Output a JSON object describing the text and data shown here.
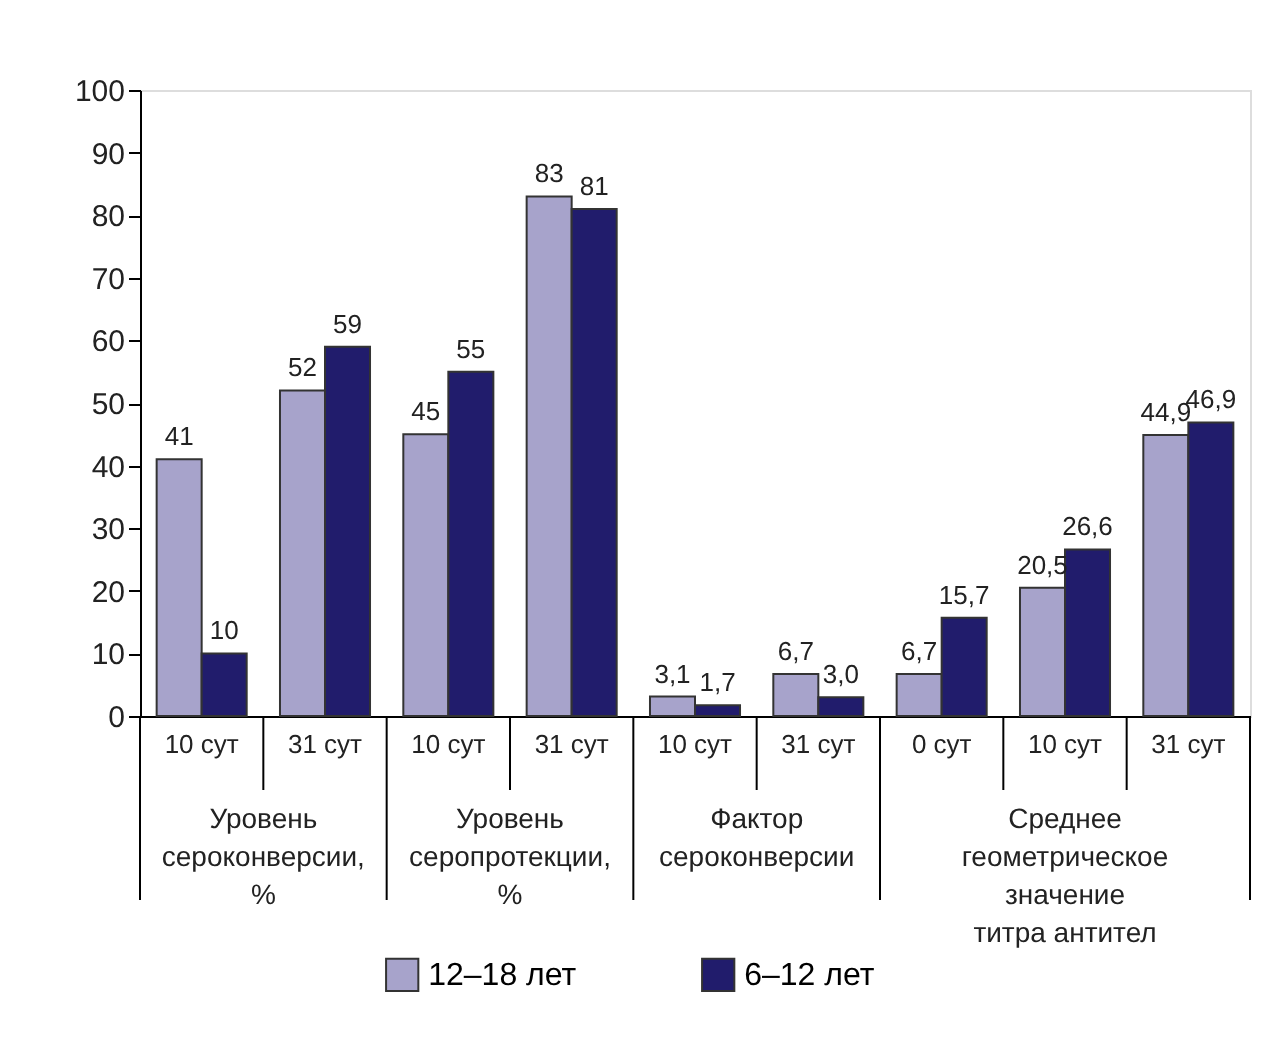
{
  "chart_data": {
    "type": "bar",
    "categories": [
      "10 сут",
      "31 сут",
      "10 сут",
      "31 сут",
      "10 сут",
      "31 сут",
      "0 сут",
      "10 сут",
      "31 сут"
    ],
    "series": [
      {
        "name": "12–18 лет",
        "color": "#a7a3cb",
        "values": [
          41,
          52,
          45,
          83,
          3.1,
          6.7,
          6.7,
          20.5,
          44.9
        ],
        "value_labels": [
          "41",
          "52",
          "45",
          "83",
          "3,1",
          "6,7",
          "6,7",
          "20,5",
          "44,9"
        ]
      },
      {
        "name": "6–12 лет",
        "color": "#211c6c",
        "values": [
          10,
          59,
          55,
          81,
          1.7,
          3.0,
          15.7,
          26.6,
          46.9
        ],
        "value_labels": [
          "10",
          "59",
          "55",
          "81",
          "1,7",
          "3,0",
          "15,7",
          "26,6",
          "46,9"
        ]
      }
    ],
    "annotations": [
      "Уровень\nсероконверсии,\n%",
      "Уровень\nсеропротекции,\n%",
      "Фактор\nсероконверсии",
      "Среднее\nгеометрическое\nзначение\nтитра антител"
    ],
    "ylim": [
      0,
      100
    ],
    "yticks": [
      0,
      10,
      20,
      30,
      40,
      50,
      60,
      70,
      80,
      90,
      100
    ],
    "grid": false,
    "legend": "bottom"
  }
}
